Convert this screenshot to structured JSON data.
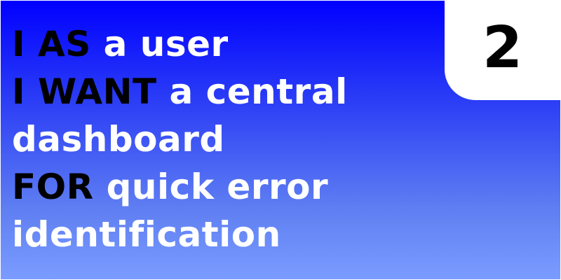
{
  "story_card": {
    "number": "2",
    "lines": [
      {
        "keyword": "I AS",
        "text": " a user"
      },
      {
        "keyword": "I WANT",
        "text": " a central"
      },
      {
        "keyword": "",
        "text": "dashboard"
      },
      {
        "keyword": "FOR",
        "text": " quick error"
      },
      {
        "keyword": "",
        "text": "identification"
      }
    ],
    "colors": {
      "background_top": "#0000ff",
      "background_bottom": "#7b9cff",
      "keyword_text": "#000000",
      "body_text": "#ffffff",
      "badge_background": "#ffffff"
    }
  }
}
